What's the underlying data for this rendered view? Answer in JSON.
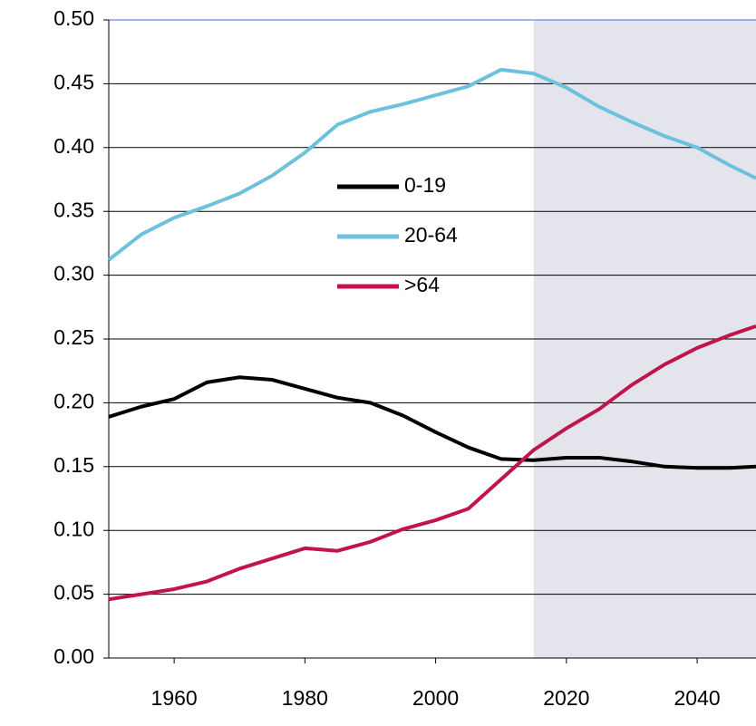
{
  "chart_data": {
    "type": "line",
    "x": [
      1950,
      1955,
      1960,
      1965,
      1970,
      1975,
      1980,
      1985,
      1990,
      1995,
      2000,
      2005,
      2010,
      2015,
      2020,
      2025,
      2030,
      2035,
      2040,
      2045,
      2049
    ],
    "series": [
      {
        "name": "0-19",
        "color": "#000000",
        "values": [
          0.189,
          0.197,
          0.203,
          0.216,
          0.22,
          0.218,
          0.211,
          0.204,
          0.2,
          0.19,
          0.177,
          0.165,
          0.156,
          0.155,
          0.157,
          0.157,
          0.154,
          0.15,
          0.149,
          0.149,
          0.15
        ]
      },
      {
        "name": "20-64",
        "color": "#6ec1dc",
        "values": [
          0.312,
          0.332,
          0.345,
          0.354,
          0.364,
          0.378,
          0.396,
          0.418,
          0.428,
          0.434,
          0.441,
          0.448,
          0.461,
          0.458,
          0.447,
          0.432,
          0.42,
          0.409,
          0.4,
          0.386,
          0.376
        ]
      },
      {
        "name": ">64",
        "color": "#c0144a",
        "values": [
          0.046,
          0.05,
          0.054,
          0.06,
          0.07,
          0.078,
          0.086,
          0.084,
          0.091,
          0.101,
          0.108,
          0.117,
          0.14,
          0.163,
          0.18,
          0.195,
          0.214,
          0.23,
          0.243,
          0.253,
          0.26
        ]
      }
    ],
    "xlim": [
      1950,
      2049
    ],
    "xticks": [
      1960,
      1980,
      2000,
      2020,
      2040
    ],
    "ylim": [
      0,
      0.5
    ],
    "yticks": [
      {
        "value": 0,
        "label": "0.00"
      },
      {
        "value": 0.05,
        "label": "0.05"
      },
      {
        "value": 0.1,
        "label": "0.10"
      },
      {
        "value": 0.15,
        "label": "0.15"
      },
      {
        "value": 0.2,
        "label": "0.20"
      },
      {
        "value": 0.25,
        "label": "0.25"
      },
      {
        "value": 0.3,
        "label": "0.30"
      },
      {
        "value": 0.35,
        "label": "0.35"
      },
      {
        "value": 0.4,
        "label": "0.40"
      },
      {
        "value": 0.45,
        "label": "0.45"
      },
      {
        "value": 0.5,
        "label": "0.50"
      }
    ],
    "grid": true,
    "shaded_from": 2015
  }
}
